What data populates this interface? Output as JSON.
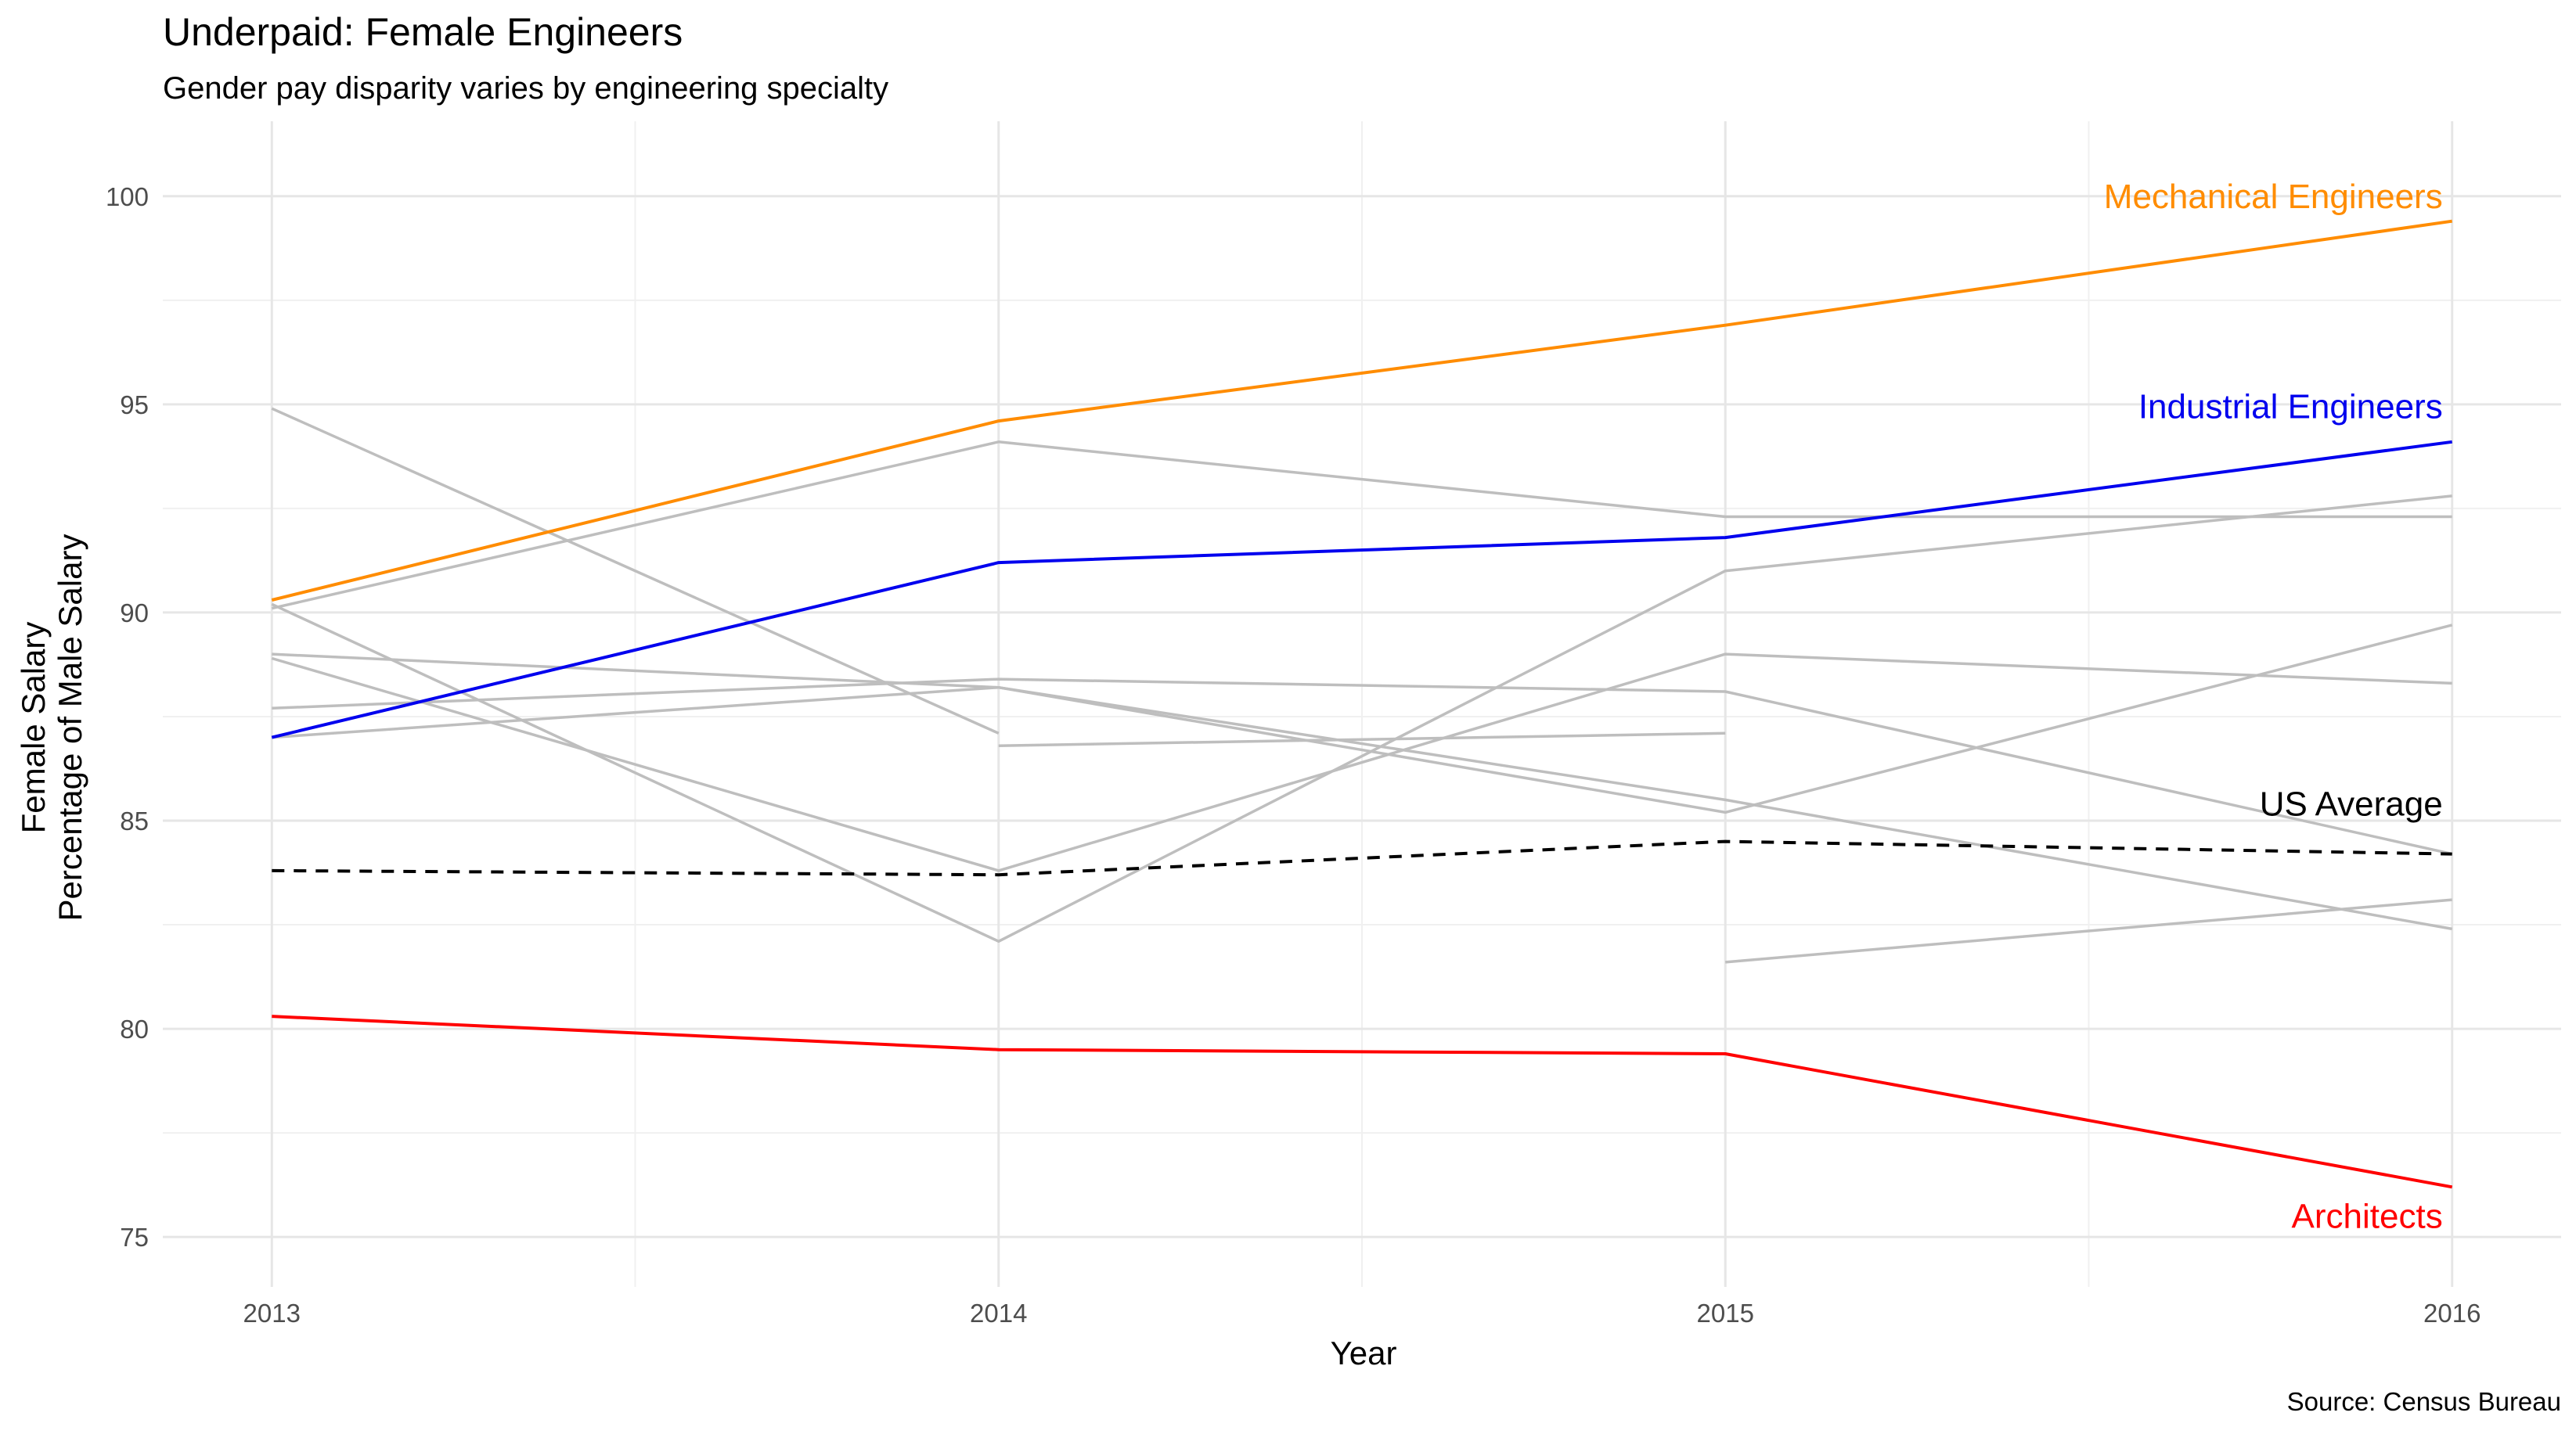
{
  "chart_data": {
    "type": "line",
    "title": "Underpaid: Female Engineers",
    "subtitle": "Gender pay disparity varies by engineering specialty",
    "xlabel": "Year",
    "ylabel": [
      "Female Salary",
      "Percentage of Male Salary"
    ],
    "caption": "Source: Census Bureau",
    "x_ticks": [
      "2013",
      "2014",
      "2015",
      "2016"
    ],
    "y_ticks": [
      "75",
      "80",
      "85",
      "90",
      "95",
      "100"
    ],
    "xlim": [
      2012.85,
      2016.15
    ],
    "ylim": [
      73.8,
      101.8
    ],
    "grid": true,
    "legend": "none",
    "series": [
      {
        "name": "Mechanical Engineers",
        "color": "#FF8C00",
        "style": "solid",
        "highlight": true,
        "points": [
          [
            2013,
            90.3
          ],
          [
            2014,
            94.6
          ],
          [
            2015,
            96.9
          ],
          [
            2016,
            99.4
          ]
        ]
      },
      {
        "name": "Industrial Engineers",
        "color": "#0000EE",
        "style": "solid",
        "highlight": true,
        "points": [
          [
            2013,
            87.0
          ],
          [
            2014,
            91.2
          ],
          [
            2015,
            91.8
          ],
          [
            2016,
            94.1
          ]
        ]
      },
      {
        "name": "US Average",
        "color": "#000000",
        "style": "dashed",
        "highlight": true,
        "points": [
          [
            2013,
            83.8
          ],
          [
            2014,
            83.7
          ],
          [
            2015,
            84.5
          ],
          [
            2016,
            84.2
          ]
        ]
      },
      {
        "name": "Architects",
        "color": "#FF0000",
        "style": "solid",
        "highlight": true,
        "points": [
          [
            2013,
            80.3
          ],
          [
            2014,
            79.5
          ],
          [
            2015,
            79.4
          ],
          [
            2016,
            76.2
          ]
        ]
      },
      {
        "color": "#BEBEBE",
        "style": "solid",
        "highlight": false,
        "points": [
          [
            2013,
            90.1
          ],
          [
            2014,
            94.1
          ],
          [
            2015,
            92.3
          ],
          [
            2016,
            92.3
          ]
        ]
      },
      {
        "color": "#BEBEBE",
        "style": "solid",
        "highlight": false,
        "points": [
          [
            2013,
            94.9
          ],
          [
            2014,
            87.1
          ]
        ]
      },
      {
        "color": "#BEBEBE",
        "style": "solid",
        "highlight": false,
        "points": [
          [
            2013,
            90.2
          ],
          [
            2014,
            82.1
          ],
          [
            2015,
            91.0
          ],
          [
            2016,
            92.8
          ]
        ]
      },
      {
        "color": "#BEBEBE",
        "style": "solid",
        "highlight": false,
        "points": [
          [
            2013,
            89.0
          ],
          [
            2014,
            88.2
          ],
          [
            2015,
            85.2
          ],
          [
            2016,
            89.7
          ]
        ]
      },
      {
        "color": "#BEBEBE",
        "style": "solid",
        "highlight": false,
        "points": [
          [
            2013,
            88.9
          ],
          [
            2014,
            83.8
          ],
          [
            2015,
            89.0
          ],
          [
            2016,
            88.3
          ]
        ]
      },
      {
        "color": "#BEBEBE",
        "style": "solid",
        "highlight": false,
        "points": [
          [
            2013,
            87.0
          ],
          [
            2014,
            88.2
          ],
          [
            2015,
            85.5
          ],
          [
            2016,
            82.4
          ]
        ]
      },
      {
        "color": "#BEBEBE",
        "style": "solid",
        "highlight": false,
        "points": [
          [
            2013,
            87.7
          ],
          [
            2014,
            88.4
          ],
          [
            2015,
            88.1
          ],
          [
            2016,
            84.2
          ]
        ]
      },
      {
        "color": "#BEBEBE",
        "style": "solid",
        "highlight": false,
        "points": [
          [
            2014,
            86.8
          ],
          [
            2015,
            87.1
          ]
        ]
      },
      {
        "color": "#BEBEBE",
        "style": "solid",
        "highlight": false,
        "points": [
          [
            2015,
            81.6
          ],
          [
            2016,
            83.1
          ]
        ]
      }
    ],
    "annotations": [
      {
        "text": "Mechanical Engineers",
        "color": "#FF8C00",
        "x": 2016,
        "y": 100.0
      },
      {
        "text": "Industrial Engineers",
        "color": "#0000EE",
        "x": 2016,
        "y": 94.95
      },
      {
        "text": "US Average",
        "color": "#000000",
        "x": 2016,
        "y": 85.4
      },
      {
        "text": "Architects",
        "color": "#FF0000",
        "x": 2016,
        "y": 75.5
      }
    ]
  }
}
